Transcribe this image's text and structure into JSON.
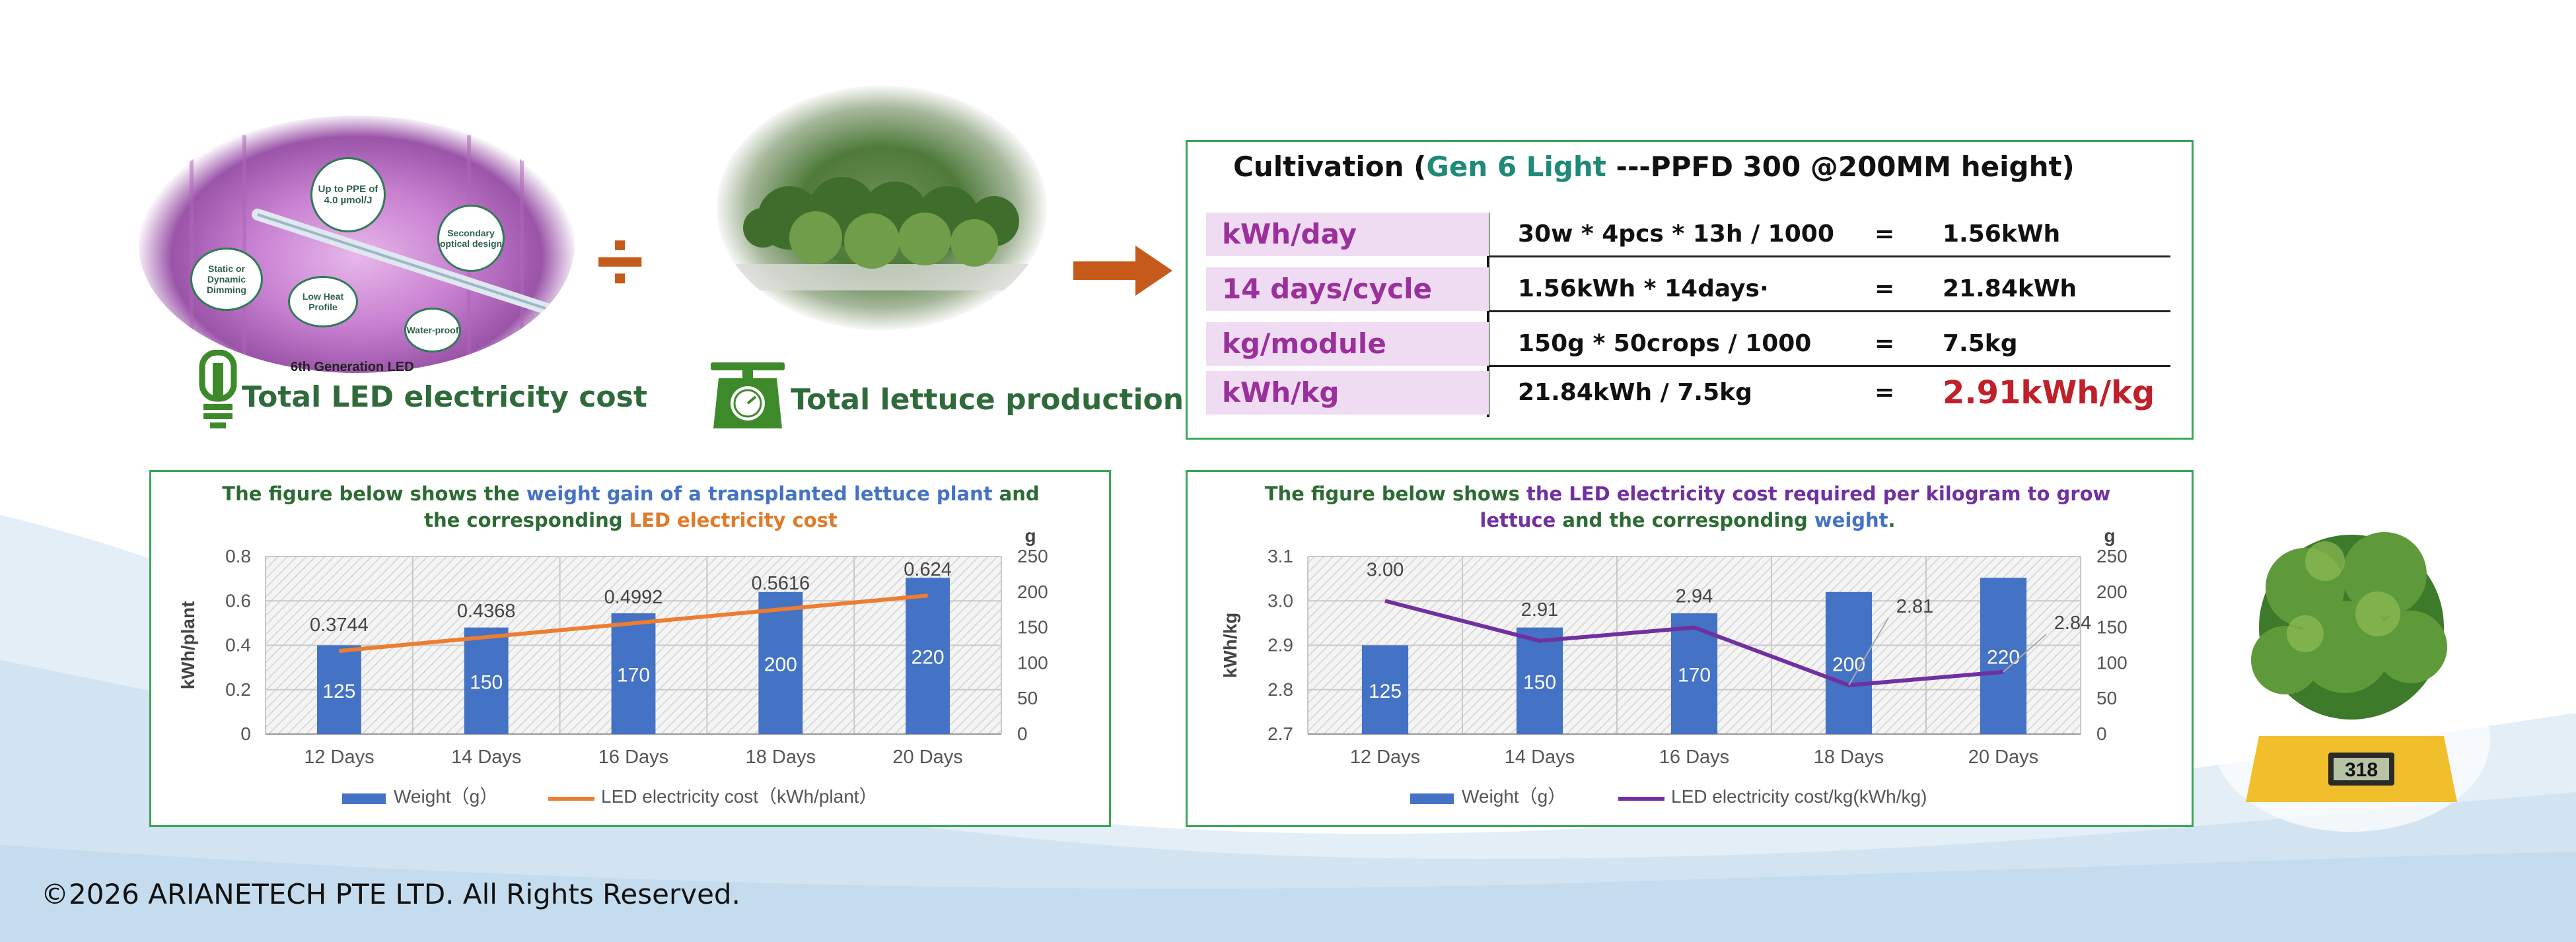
{
  "header": {
    "led_label": "6th Generation LED",
    "led_features": [
      "Up to PPE of 4.0 µmol/J",
      "Secondary optical design",
      "Static or Dynamic Dimming",
      "Low Heat Profile",
      "Water-proof"
    ],
    "divide_symbol": "÷",
    "led_caption": "Total LED electricity cost",
    "lettuce_caption": "Total lettuce production"
  },
  "cultivation": {
    "title_prefix": "Cultivation (",
    "title_highlight": "Gen 6 Light",
    "title_suffix": " ---PPFD 300 @200MM height)",
    "rows": [
      {
        "label": "kWh/day",
        "formula": "30w *  4pcs  * 13h  / 1000",
        "eq": "=",
        "result": "1.56kWh"
      },
      {
        "label": "14 days/cycle",
        "formula": "1.56kWh  *  14days·",
        "eq": "=",
        "result": "21.84kWh"
      },
      {
        "label": "kg/module",
        "formula": "150g  *   50crops   / 1000",
        "eq": "=",
        "result": "7.5kg"
      },
      {
        "label": "kWh/kg",
        "formula": "21.84kWh      /      7.5kg",
        "eq": "=",
        "result": "2.91kWh/kg"
      }
    ],
    "colors": {
      "label_bg": "#efdcf2",
      "label_text": "#9b2f9c",
      "highlight": "#1f8a78",
      "result": "#c0202a"
    }
  },
  "chart_left_title": {
    "p1": "The figure below shows the ",
    "p2": "weight gain of a transplanted lettuce plant",
    "p3": " and",
    "p4": "the corresponding ",
    "p5": "LED electricity cost"
  },
  "chart_right_title": {
    "p1": "The figure below shows ",
    "p2": "the LED electricity cost required per kilogram to grow",
    "p3": "lettuce",
    "p4": " and the corresponding ",
    "p5": "weight",
    "p6": "."
  },
  "chart_data": [
    {
      "type": "bar",
      "categories": [
        "12 Days",
        "14 Days",
        "16 Days",
        "18 Days",
        "20 Days"
      ],
      "series": [
        {
          "name": "Weight（g）",
          "type": "bar",
          "axis": "right",
          "values": [
            125,
            150,
            170,
            200,
            220
          ],
          "labels": [
            "125",
            "150",
            "170",
            "200",
            "220"
          ],
          "color": "#4472c4"
        },
        {
          "name": "LED electricity cost（kWh/plant）",
          "type": "line",
          "axis": "left",
          "values": [
            0.3744,
            0.4368,
            0.4992,
            0.5616,
            0.624
          ],
          "labels": [
            "0.3744",
            "0.4368",
            "0.4992",
            "0.5616",
            "0.624"
          ],
          "color": "#ed7d31"
        }
      ],
      "ylabel": "kWh/plant",
      "y2label": "g",
      "ylim": [
        0,
        0.8
      ],
      "yticks": [
        "0",
        "0.2",
        "0.4",
        "0.6",
        "0.8"
      ],
      "y2lim": [
        0,
        250
      ],
      "y2ticks": [
        "0",
        "50",
        "100",
        "150",
        "200",
        "250"
      ],
      "legend": "bottom"
    },
    {
      "type": "bar",
      "categories": [
        "12 Days",
        "14 Days",
        "16 Days",
        "18 Days",
        "20 Days"
      ],
      "series": [
        {
          "name": "Weight（g）",
          "type": "bar",
          "axis": "right",
          "values": [
            125,
            150,
            170,
            200,
            220
          ],
          "labels": [
            "125",
            "150",
            "170",
            "200",
            "220"
          ],
          "color": "#4472c4"
        },
        {
          "name": "LED electricity cost/kg(kWh/kg)",
          "type": "line",
          "axis": "left",
          "values": [
            3.0,
            2.91,
            2.94,
            2.81,
            2.84
          ],
          "labels": [
            "3.00",
            "2.91",
            "2.94",
            "2.81",
            "2.84"
          ],
          "color": "#7030a0"
        }
      ],
      "ylabel": "kWh/kg",
      "y2label": "g",
      "ylim": [
        2.7,
        3.1
      ],
      "yticks": [
        "2.7",
        "2.8",
        "2.9",
        "3.0",
        "3.1"
      ],
      "y2lim": [
        0,
        250
      ],
      "y2ticks": [
        "0",
        "50",
        "100",
        "150",
        "200",
        "250"
      ],
      "legend": "bottom"
    }
  ],
  "scale_display": "318",
  "footer": {
    "copyright": "©2026 ARIANETECH PTE LTD. All Rights Reserved."
  }
}
